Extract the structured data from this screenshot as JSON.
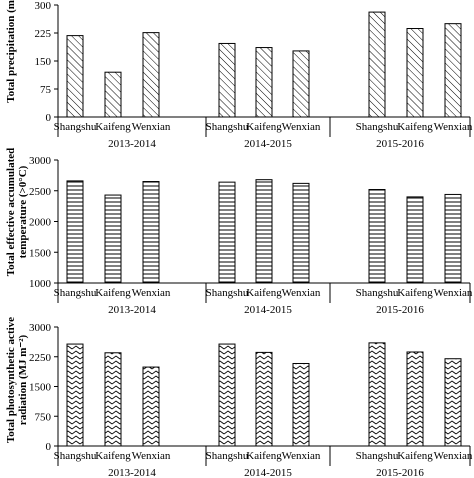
{
  "chart_data": [
    {
      "type": "bar",
      "ylabel": [
        "Total precipitation (mm)"
      ],
      "ylim": [
        0,
        300
      ],
      "yticks": [
        "0",
        "75",
        "150",
        "225",
        "300"
      ],
      "categories": [
        "Shangshu",
        "Kaifeng",
        "Wenxian"
      ],
      "groups": [
        "2013-2014",
        "2014-2015",
        "2015-2016"
      ],
      "values": [
        [
          218,
          120,
          226
        ],
        [
          197,
          186,
          177
        ],
        [
          281,
          237,
          250
        ]
      ],
      "pattern": "diagonal-hatch"
    },
    {
      "type": "bar",
      "ylabel": [
        "Total effective accumulated",
        "temperature (>0°C)"
      ],
      "ylim": [
        1000,
        3000
      ],
      "yticks": [
        "1000",
        "1500",
        "2000",
        "2500",
        "3000"
      ],
      "categories": [
        "Shangshu",
        "Kaifeng",
        "Wenxian"
      ],
      "groups": [
        "2013-2014",
        "2014-2015",
        "2015-2016"
      ],
      "values": [
        [
          2660,
          2430,
          2650
        ],
        [
          2640,
          2680,
          2620
        ],
        [
          2520,
          2400,
          2440
        ]
      ],
      "pattern": "horizontal-lines"
    },
    {
      "type": "bar",
      "ylabel": [
        "Total photosynthetic active",
        "radiation (MJ m⁻²)"
      ],
      "ylim": [
        0,
        3000
      ],
      "yticks": [
        "0",
        "750",
        "1500",
        "2250",
        "3000"
      ],
      "categories": [
        "Shangshu",
        "Kaifeng",
        "Wenxian"
      ],
      "groups": [
        "2013-2014",
        "2014-2015",
        "2015-2016"
      ],
      "values": [
        [
          2570,
          2350,
          1990
        ],
        [
          2570,
          2360,
          2080
        ],
        [
          2600,
          2370,
          2200
        ]
      ],
      "pattern": "zigzag"
    }
  ]
}
